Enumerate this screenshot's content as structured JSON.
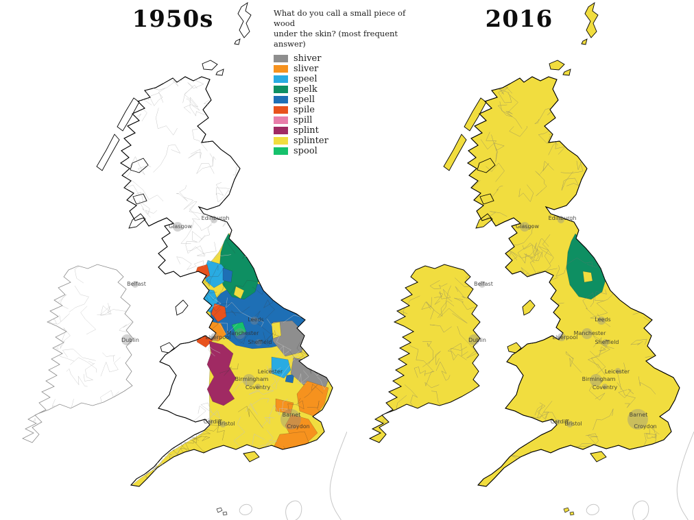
{
  "question": {
    "line1": "What do you call a small piece of wood",
    "line2": "under the skin? (most frequent answer)"
  },
  "panels": {
    "left": {
      "title": "1950s"
    },
    "right": {
      "title": "2016"
    }
  },
  "legend": {
    "items": [
      {
        "label": "shiver",
        "color": "#8e8e8e"
      },
      {
        "label": "sliver",
        "color": "#f6921e"
      },
      {
        "label": "speel",
        "color": "#29abe2"
      },
      {
        "label": "spelk",
        "color": "#0e8f62"
      },
      {
        "label": "spell",
        "color": "#1e6fb5"
      },
      {
        "label": "spile",
        "color": "#e8521d"
      },
      {
        "label": "spill",
        "color": "#e87daa"
      },
      {
        "label": "splint",
        "color": "#a02a63"
      },
      {
        "label": "splinter",
        "color": "#f1dd3f"
      },
      {
        "label": "spool",
        "color": "#16c16c"
      }
    ]
  },
  "cities": {
    "glasgow": "Glasgow",
    "edinburgh": "Edinburgh",
    "belfast": "Belfast",
    "dublin": "Dublin",
    "leeds": "Leeds",
    "manchester": "Manchester",
    "liverpool": "Liverpool",
    "sheffield": "Sheffield",
    "leicester": "Leicester",
    "birmingham": "Birmingham",
    "coventry": "Coventry",
    "barnet": "Barnet",
    "croydon": "Croydon",
    "cardiff": "Cardiff",
    "bristol": "Bristol"
  },
  "map_summary": {
    "1950s": "England shows a regional mix: spelk in Northumberland/Durham, spell across Yorkshire, speel in Cumbria, spile and sliver patches in the north-west, spool near Manchester, splint down the west Midlands and in south Devon, shiver on the east coast and Norfolk, sliver in East Anglia, London and the south-east, splinter elsewhere; Scotland, Wales and Ireland show no data.",
    "2016": "Almost the whole of Britain and Ireland answers splinter (yellow), except a spelk (teal) pocket around Northumberland."
  }
}
